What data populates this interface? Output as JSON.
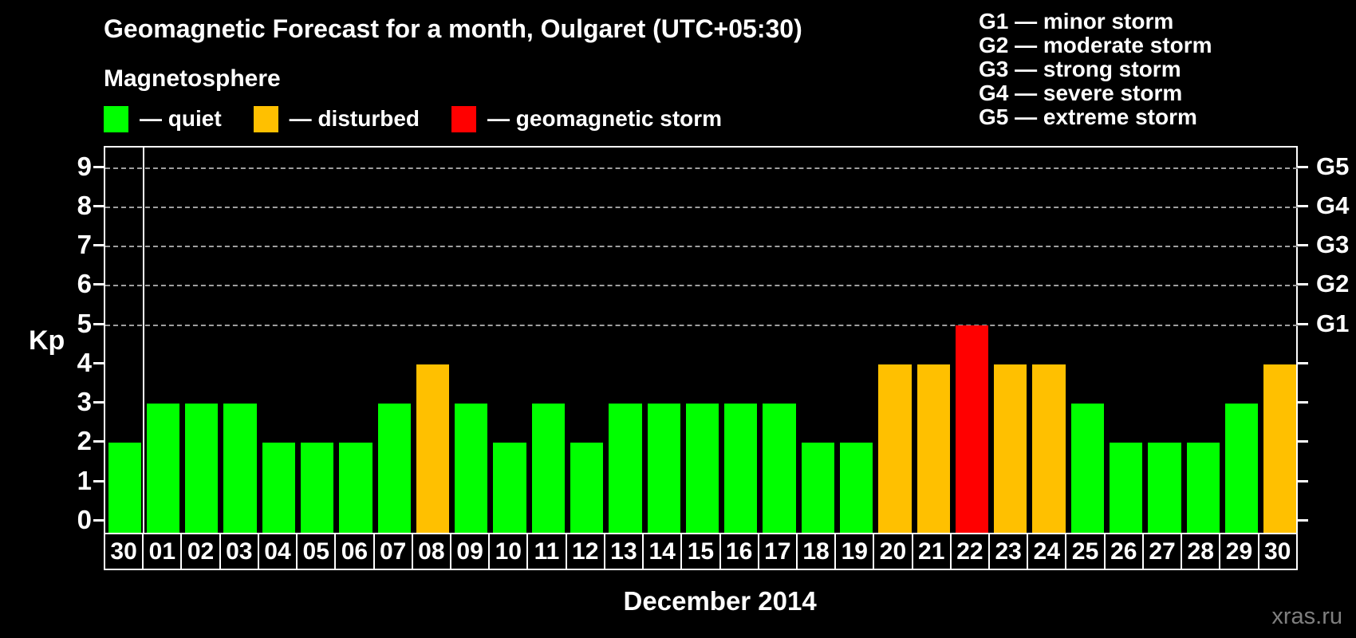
{
  "title": "Geomagnetic Forecast for a month, Oulgaret (UTC+05:30)",
  "subtitle": "Magnetosphere",
  "legend": {
    "items": [
      {
        "name": "quiet",
        "label": "— quiet",
        "color": "#00ff00"
      },
      {
        "name": "disturbed",
        "label": "— disturbed",
        "color": "#ffc000"
      },
      {
        "name": "storm",
        "label": "— geomagnetic storm",
        "color": "#ff0000"
      }
    ]
  },
  "g_scale_legend": [
    "G1 — minor storm",
    "G2 — moderate storm",
    "G3 — strong storm",
    "G4 — severe storm",
    "G5 — extreme storm"
  ],
  "y_axis": {
    "label": "Kp",
    "ticks": [
      0,
      1,
      2,
      3,
      4,
      5,
      6,
      7,
      8,
      9
    ]
  },
  "right_axis": {
    "ticks": [
      {
        "label": "G1",
        "kp": 5
      },
      {
        "label": "G2",
        "kp": 6
      },
      {
        "label": "G3",
        "kp": 7
      },
      {
        "label": "G4",
        "kp": 8
      },
      {
        "label": "G5",
        "kp": 9
      }
    ]
  },
  "x_axis": {
    "month_label": "December 2014"
  },
  "watermark": "xras.ru",
  "chart_data": {
    "type": "bar",
    "title": "Geomagnetic Forecast for a month, Oulgaret (UTC+05:30)",
    "xlabel": "December 2014",
    "ylabel": "Kp",
    "ylim": [
      0,
      9.5
    ],
    "grid": "horizontal dashed gridlines at Kp 5,6,7,8,9 (G1-G5)",
    "legend_position": "top-left",
    "gridline_levels": [
      5,
      6,
      7,
      8,
      9
    ],
    "month_separator_after_index": 0,
    "categories": [
      "30",
      "01",
      "02",
      "03",
      "04",
      "05",
      "06",
      "07",
      "08",
      "09",
      "10",
      "11",
      "12",
      "13",
      "14",
      "15",
      "16",
      "17",
      "18",
      "19",
      "20",
      "21",
      "22",
      "23",
      "24",
      "25",
      "26",
      "27",
      "28",
      "29",
      "30"
    ],
    "values": [
      2,
      3,
      3,
      3,
      2,
      2,
      2,
      3,
      4,
      3,
      2,
      3,
      2,
      3,
      3,
      3,
      3,
      3,
      2,
      2,
      4,
      4,
      5,
      4,
      4,
      3,
      2,
      2,
      2,
      3,
      4
    ],
    "statuses": [
      "quiet",
      "quiet",
      "quiet",
      "quiet",
      "quiet",
      "quiet",
      "quiet",
      "quiet",
      "disturbed",
      "quiet",
      "quiet",
      "quiet",
      "quiet",
      "quiet",
      "quiet",
      "quiet",
      "quiet",
      "quiet",
      "quiet",
      "quiet",
      "disturbed",
      "disturbed",
      "storm",
      "disturbed",
      "disturbed",
      "quiet",
      "quiet",
      "quiet",
      "quiet",
      "quiet",
      "disturbed"
    ],
    "colors": {
      "quiet": "#00ff00",
      "disturbed": "#ffc000",
      "storm": "#ff0000"
    }
  }
}
